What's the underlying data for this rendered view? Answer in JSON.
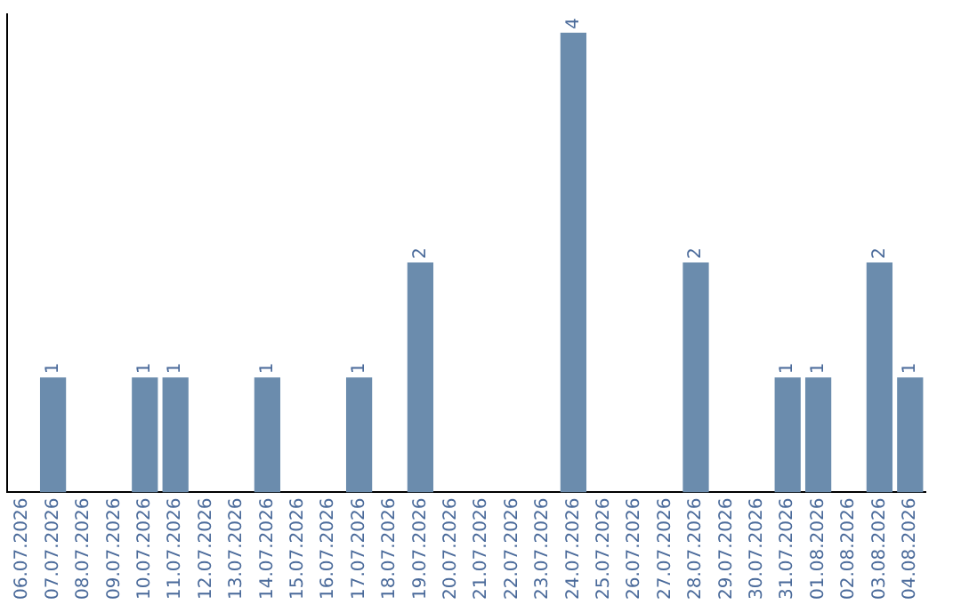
{
  "chart_data": {
    "type": "bar",
    "categories": [
      "06.07.2026",
      "07.07.2026",
      "08.07.2026",
      "09.07.2026",
      "10.07.2026",
      "11.07.2026",
      "12.07.2026",
      "13.07.2026",
      "14.07.2026",
      "15.07.2026",
      "16.07.2026",
      "17.07.2026",
      "18.07.2026",
      "19.07.2026",
      "20.07.2026",
      "21.07.2026",
      "22.07.2026",
      "23.07.2026",
      "24.07.2026",
      "25.07.2026",
      "26.07.2026",
      "27.07.2026",
      "28.07.2026",
      "29.07.2026",
      "30.07.2026",
      "31.07.2026",
      "01.08.2026",
      "02.08.2026",
      "03.08.2026",
      "04.08.2026"
    ],
    "values": [
      0,
      1,
      0,
      0,
      1,
      1,
      0,
      0,
      1,
      0,
      0,
      1,
      0,
      2,
      0,
      0,
      0,
      0,
      4,
      0,
      0,
      0,
      2,
      0,
      0,
      1,
      1,
      0,
      2,
      1
    ],
    "value_labels": [
      null,
      "1",
      null,
      null,
      "1",
      "1",
      null,
      null,
      "1",
      null,
      null,
      "1",
      null,
      "2",
      null,
      null,
      null,
      null,
      "4",
      null,
      null,
      null,
      "2",
      null,
      null,
      "1",
      "1",
      null,
      "2",
      "1"
    ],
    "color": "#6b8cad",
    "grid": false,
    "legend": false,
    "tick_labels": "x"
  }
}
